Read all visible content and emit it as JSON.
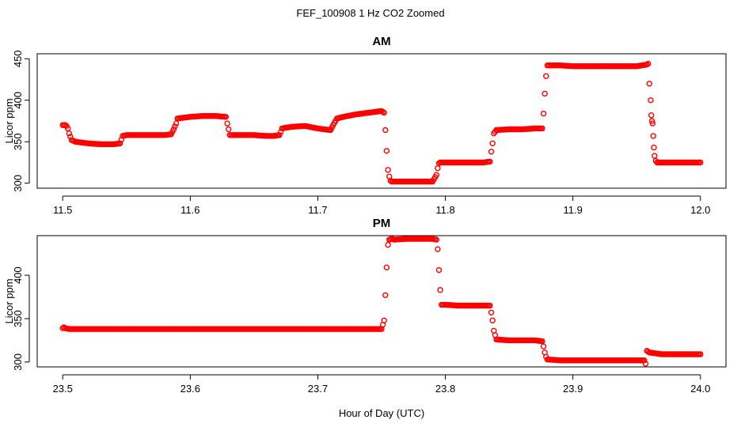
{
  "title": "FEF_100908  1 Hz CO2 Zoomed",
  "xlabel": "Hour of Day (UTC)",
  "colors": {
    "points": "#ff0000",
    "axis": "#000000",
    "background": "#ffffff"
  },
  "chart_data": [
    {
      "type": "scatter",
      "title": "AM",
      "xlabel": "Hour of Day (UTC)",
      "ylabel": "Licor ppm",
      "xlim": [
        11.5,
        12.0
      ],
      "ylim": [
        300,
        450
      ],
      "xticks": [
        "11.5",
        "11.6",
        "11.7",
        "11.8",
        "11.9",
        "12.0"
      ],
      "yticks": [
        "300",
        "350",
        "400",
        "450"
      ],
      "grid": false,
      "marker": "open-circle",
      "series": [
        {
          "x": [
            11.5,
            11.502,
            11.503,
            11.504,
            11.505,
            11.507,
            11.51,
            11.52,
            11.53,
            11.54,
            11.545,
            11.547,
            11.55,
            11.56,
            11.57,
            11.58,
            11.585,
            11.587,
            11.589,
            11.59,
            11.6,
            11.61,
            11.62,
            11.628,
            11.629,
            11.63,
            11.631,
            11.64,
            11.65,
            11.66,
            11.665,
            11.67,
            11.672,
            11.675,
            11.68,
            11.69,
            11.7,
            11.71,
            11.712,
            11.715,
            11.72,
            11.73,
            11.74,
            11.745,
            11.75,
            11.752,
            11.753,
            11.754,
            11.755,
            11.756,
            11.757,
            11.758,
            11.76,
            11.77,
            11.78,
            11.79,
            11.793,
            11.794,
            11.795,
            11.796,
            11.797,
            11.8,
            11.81,
            11.82,
            11.83,
            11.835,
            11.836,
            11.837,
            11.838,
            11.84,
            11.85,
            11.86,
            11.87,
            11.876,
            11.877,
            11.878,
            11.879,
            11.88,
            11.89,
            11.9,
            11.91,
            11.92,
            11.93,
            11.94,
            11.95,
            11.958,
            11.959,
            11.96,
            11.961,
            11.9615,
            11.962,
            11.9625,
            11.963,
            11.9635,
            11.964,
            11.965,
            11.966,
            11.97,
            11.98,
            11.99,
            12.0
          ],
          "y": [
            370,
            370,
            369,
            366,
            360,
            352,
            350,
            348,
            347,
            347,
            348,
            357,
            358,
            358,
            358,
            358,
            359,
            365,
            372,
            378,
            380,
            381,
            381,
            380,
            372,
            365,
            358,
            358,
            358,
            357,
            357,
            358,
            366,
            367,
            368,
            369,
            366,
            364,
            370,
            378,
            380,
            383,
            385,
            386,
            387,
            385,
            364,
            339,
            316,
            308,
            303,
            302,
            302,
            302,
            302,
            302,
            310,
            318,
            324,
            325,
            325,
            325,
            325,
            325,
            325,
            326,
            338,
            348,
            360,
            364,
            365,
            365,
            366,
            366,
            384,
            408,
            429,
            442,
            442,
            441,
            441,
            441,
            441,
            441,
            441,
            443,
            444,
            420,
            400,
            382,
            375,
            372,
            357,
            343,
            333,
            327,
            325,
            325,
            325,
            325,
            325
          ]
        }
      ]
    },
    {
      "type": "scatter",
      "title": "PM",
      "xlabel": "Hour of Day (UTC)",
      "ylabel": "Licor ppm",
      "xlim": [
        23.5,
        24.0
      ],
      "ylim": [
        300,
        440
      ],
      "xticks": [
        "23.5",
        "23.6",
        "23.7",
        "23.8",
        "23.9",
        "24.0"
      ],
      "yticks": [
        "300",
        "350",
        "400"
      ],
      "grid": false,
      "marker": "open-circle",
      "series": [
        {
          "x": [
            23.5,
            23.501,
            23.502,
            23.505,
            23.52,
            23.55,
            23.6,
            23.65,
            23.7,
            23.73,
            23.75,
            23.752,
            23.753,
            23.754,
            23.755,
            23.756,
            23.758,
            23.76,
            23.77,
            23.78,
            23.79,
            23.793,
            23.794,
            23.795,
            23.796,
            23.797,
            23.8,
            23.81,
            23.82,
            23.83,
            23.835,
            23.836,
            23.837,
            23.838,
            23.84,
            23.85,
            23.86,
            23.87,
            23.876,
            23.877,
            23.878,
            23.879,
            23.88,
            23.89,
            23.9,
            23.91,
            23.92,
            23.93,
            23.94,
            23.95,
            23.956,
            23.957,
            23.958,
            23.96,
            23.97,
            23.98,
            23.99,
            24.0
          ],
          "y": [
            339,
            340,
            339,
            338,
            338,
            338,
            338,
            338,
            338,
            338,
            338,
            348,
            377,
            409,
            435,
            441,
            442,
            441,
            442,
            442,
            442,
            441,
            430,
            406,
            383,
            366,
            366,
            365,
            365,
            365,
            365,
            357,
            348,
            336,
            326,
            325,
            325,
            325,
            324,
            318,
            311,
            306,
            303,
            302,
            302,
            302,
            302,
            302,
            302,
            302,
            302,
            298,
            313,
            311,
            309,
            309,
            309,
            309
          ]
        }
      ]
    }
  ]
}
